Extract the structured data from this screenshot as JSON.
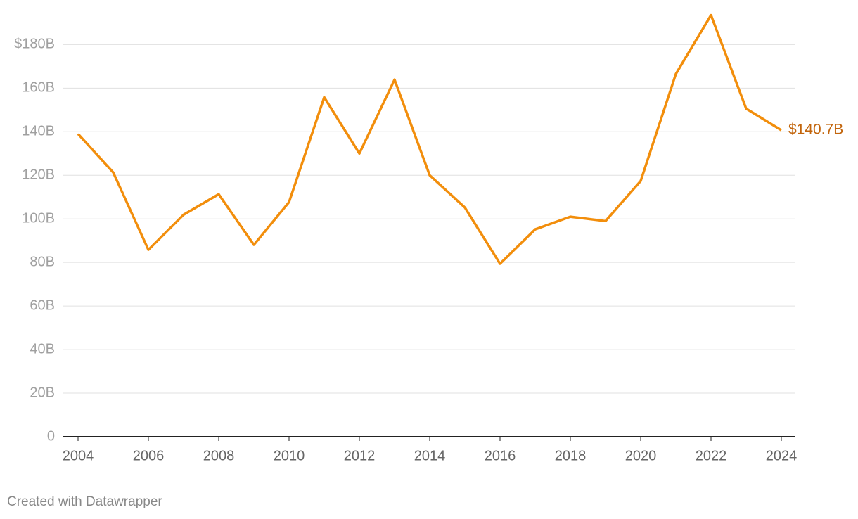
{
  "chart_data": {
    "type": "line",
    "x": [
      2004,
      2005,
      2006,
      2007,
      2008,
      2009,
      2010,
      2011,
      2012,
      2013,
      2014,
      2015,
      2016,
      2017,
      2018,
      2019,
      2020,
      2021,
      2022,
      2023,
      2024
    ],
    "series": [
      {
        "color": "#f28e0c",
        "values": [
          139.0,
          121.3,
          85.8,
          101.9,
          111.3,
          88.1,
          107.7,
          155.8,
          130.0,
          163.9,
          120.0,
          105.2,
          79.4,
          95.2,
          101.0,
          99.0,
          117.4,
          166.5,
          193.5,
          150.6,
          140.7
        ],
        "value_labels": [
          null,
          null,
          null,
          null,
          null,
          null,
          null,
          null,
          null,
          null,
          null,
          null,
          null,
          null,
          null,
          null,
          null,
          null,
          null,
          null,
          "$140.7B"
        ],
        "label_color": "#c2650c"
      }
    ],
    "xlim": [
      2004,
      2024
    ],
    "xticks": [
      2004,
      2006,
      2008,
      2010,
      2012,
      2014,
      2016,
      2018,
      2020,
      2022,
      2024
    ],
    "ylim": [
      0,
      194
    ],
    "yticks": [
      0,
      {
        "value": 20,
        "label": "20B"
      },
      {
        "value": 40,
        "label": "40B"
      },
      {
        "value": 60,
        "label": "60B"
      },
      {
        "value": 80,
        "label": "80B"
      },
      {
        "value": 100,
        "label": "100B"
      },
      {
        "value": 120,
        "label": "120B"
      },
      {
        "value": 140,
        "label": "140B"
      },
      {
        "value": 160,
        "label": "160B"
      },
      {
        "value": 180,
        "label": "$180B"
      }
    ],
    "grid": true,
    "credit": "Created with Datawrapper"
  }
}
